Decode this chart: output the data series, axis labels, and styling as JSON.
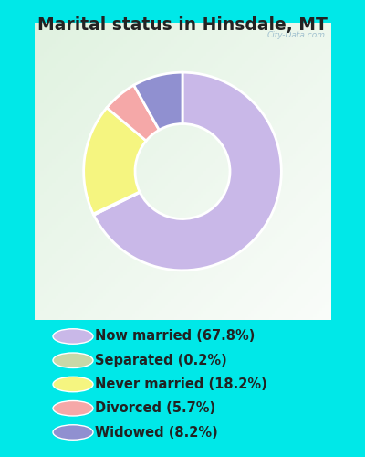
{
  "title": "Marital status in Hinsdale, MT",
  "slices": [
    67.8,
    0.2,
    18.2,
    5.7,
    8.2
  ],
  "labels": [
    "Now married (67.8%)",
    "Separated (0.2%)",
    "Never married (18.2%)",
    "Divorced (5.7%)",
    "Widowed (8.2%)"
  ],
  "colors": [
    "#c9b8e8",
    "#c8d8a8",
    "#f5f580",
    "#f5a8a8",
    "#9090d0"
  ],
  "legend_colors": [
    "#c9b8e8",
    "#c8d8a8",
    "#f5f580",
    "#f5a8a8",
    "#9090d0"
  ],
  "bg_outer": "#00e8e8",
  "bg_chart_topleft": "#dff0e0",
  "bg_chart_bottomright": "#f5fff5",
  "title_fontsize": 13.5,
  "legend_fontsize": 10.5,
  "watermark": "City-Data.com",
  "donut_width": 0.52,
  "startangle": 90
}
